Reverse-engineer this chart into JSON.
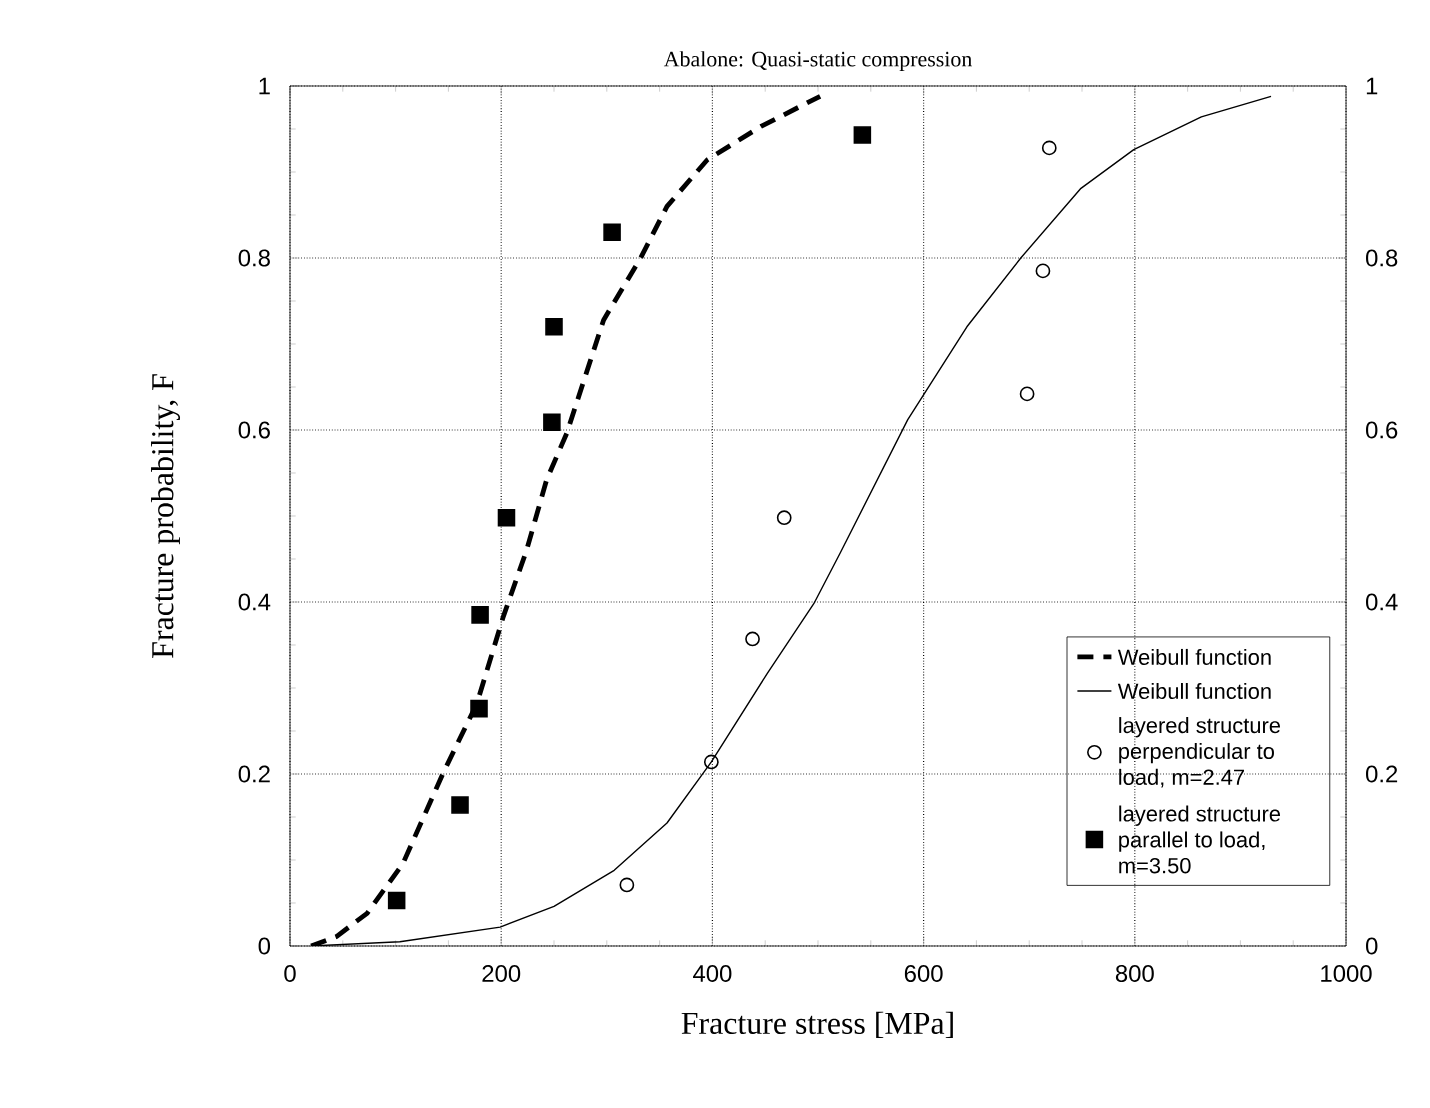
{
  "chart_data": {
    "type": "scatter",
    "title": "Abalone: Quasi-static compression",
    "xlabel": "Fracture stress [MPa]",
    "ylabel": "Fracture probability, F",
    "xlim": [
      0,
      1000
    ],
    "xticks": [
      0,
      200,
      400,
      600,
      800,
      1000
    ],
    "ylim": [
      0,
      1
    ],
    "yticks": [
      0,
      0.2,
      0.4,
      0.6,
      0.8,
      1
    ],
    "y2lim": [
      0,
      1
    ],
    "y2ticks": [
      0,
      0.2,
      0.4,
      0.6,
      0.8,
      1
    ],
    "grid": true,
    "legend": "bottom right",
    "series": [
      {
        "name": "Weibull function",
        "type": "line",
        "line_style": "dashed",
        "marker": "none",
        "color": "#000000",
        "x": [
          20,
          44,
          73,
          107,
          145,
          177,
          202,
          224,
          243,
          262,
          297,
          332,
          357,
          395,
          446,
          502
        ],
        "values": [
          0,
          0.011,
          0.038,
          0.096,
          0.201,
          0.282,
          0.383,
          0.46,
          0.542,
          0.596,
          0.728,
          0.8,
          0.86,
          0.914,
          0.953,
          0.988
        ]
      },
      {
        "name": "Weibull function",
        "type": "line",
        "line_style": "solid",
        "marker": "none",
        "color": "#000000",
        "x": [
          20,
          104,
          199,
          250,
          307,
          357,
          399,
          452,
          496,
          521,
          585,
          641,
          692,
          749,
          799,
          863,
          929
        ],
        "values": [
          0,
          0.005,
          0.022,
          0.046,
          0.088,
          0.143,
          0.214,
          0.317,
          0.398,
          0.457,
          0.612,
          0.72,
          0.8,
          0.881,
          0.926,
          0.964,
          0.988
        ]
      },
      {
        "name": "layered structure perpendicular to load, m=2.47",
        "type": "scatter",
        "marker": "circle",
        "color": "#000000",
        "x": [
          319,
          399,
          438,
          468,
          698,
          713,
          719
        ],
        "values": [
          0.071,
          0.214,
          0.357,
          0.498,
          0.642,
          0.785,
          0.928
        ]
      },
      {
        "name": "layered structure parallel to load, m=3.50",
        "marker": "square",
        "color": "#000000",
        "x": [
          101,
          161,
          179,
          180,
          205,
          248,
          250,
          305,
          542
        ],
        "values": [
          0.053,
          0.164,
          0.276,
          0.385,
          0.498,
          0.609,
          0.72,
          0.83,
          0.943
        ]
      }
    ]
  }
}
